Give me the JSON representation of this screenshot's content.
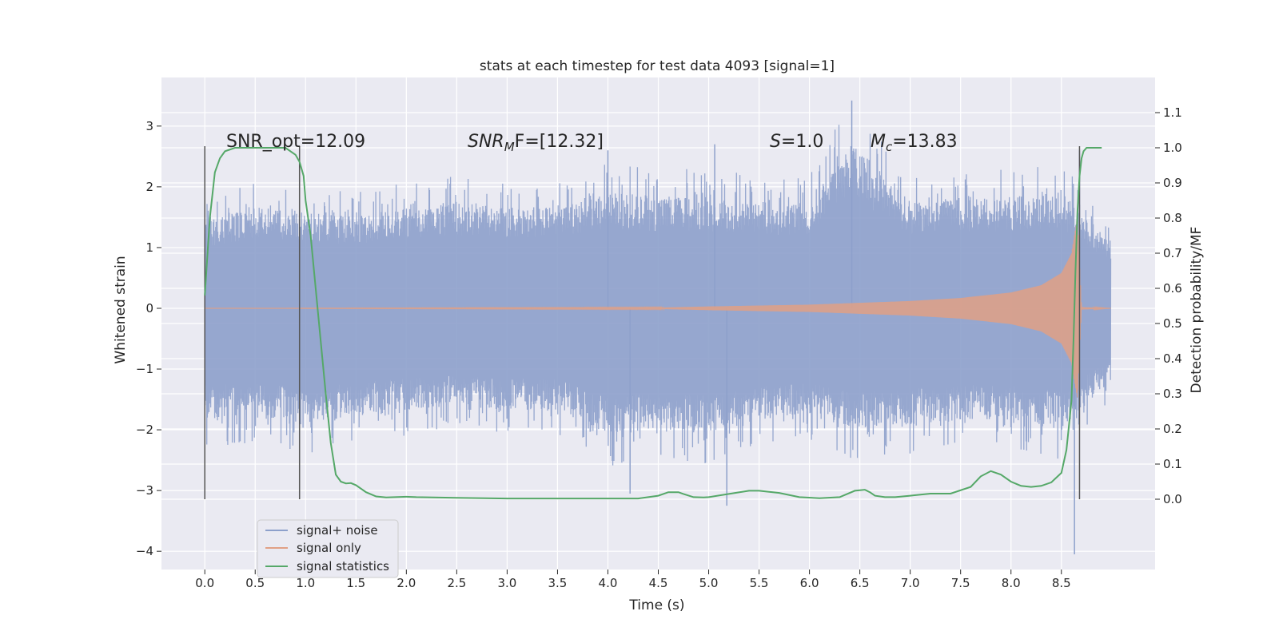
{
  "chart_data": {
    "type": "line",
    "title": "stats at each timestep for test data 4093 [signal=1]",
    "xlabel": "Time (s)",
    "ylabel": "Whitened strain",
    "ylabel_right": "Detection probability/MF",
    "xlim": [
      -0.43,
      9.43
    ],
    "ylim": [
      -4.3,
      3.8
    ],
    "ylim_right": [
      -0.2,
      1.2
    ],
    "x_ticks": [
      "0.0",
      "0.5",
      "1.0",
      "1.5",
      "2.0",
      "2.5",
      "3.0",
      "3.5",
      "4.0",
      "4.5",
      "5.0",
      "5.5",
      "6.0",
      "6.5",
      "7.0",
      "7.5",
      "8.0",
      "8.5"
    ],
    "y_ticks": [
      "3",
      "2",
      "1",
      "0",
      "−1",
      "−2",
      "−3",
      "−4"
    ],
    "y_ticks_right": [
      "0.0",
      "0.1",
      "0.2",
      "0.3",
      "0.4",
      "0.5",
      "0.6",
      "0.7",
      "0.8",
      "0.9",
      "1.0",
      "1.1"
    ],
    "grid": true,
    "legend_position": "lower-left",
    "annotations": {
      "snr_opt": "SNR_opt=12.09",
      "snr_mf_base": "SNR",
      "snr_mf_sub": "M",
      "snr_mf_rest": "F=[12.32]",
      "s_base": "S",
      "s_rest": "=1.0",
      "mc_base": "M",
      "mc_sub": "c",
      "mc_rest": "=13.83"
    },
    "vertical_markers": [
      0.0,
      0.94,
      8.68
    ],
    "series": [
      {
        "name": "signal+ noise",
        "color": "#8da0cb",
        "x_range": [
          0.0,
          8.99
        ],
        "envelope": [
          [
            0.0,
            1.8,
            -2.3
          ],
          [
            0.5,
            2.1,
            -2.2
          ],
          [
            1.0,
            2.0,
            -2.4
          ],
          [
            1.5,
            1.9,
            -2.2
          ],
          [
            2.0,
            2.1,
            -2.1
          ],
          [
            2.5,
            2.2,
            -2.0
          ],
          [
            3.0,
            2.1,
            -2.1
          ],
          [
            3.5,
            2.1,
            -2.1
          ],
          [
            4.0,
            2.4,
            -2.6
          ],
          [
            4.5,
            2.3,
            -2.5
          ],
          [
            5.0,
            2.3,
            -2.6
          ],
          [
            5.5,
            2.2,
            -2.3
          ],
          [
            6.0,
            2.2,
            -2.2
          ],
          [
            6.4,
            3.4,
            -2.5
          ],
          [
            7.0,
            2.2,
            -2.4
          ],
          [
            7.5,
            2.3,
            -2.3
          ],
          [
            8.0,
            2.3,
            -2.3
          ],
          [
            8.5,
            2.4,
            -2.5
          ],
          [
            8.99,
            1.4,
            -1.5
          ]
        ],
        "spikes": [
          [
            6.42,
            3.42
          ],
          [
            8.63,
            -4.05
          ],
          [
            5.18,
            -3.25
          ],
          [
            4.22,
            -3.05
          ],
          [
            8.68,
            2.6
          ],
          [
            4.0,
            2.6
          ],
          [
            5.06,
            2.7
          ]
        ]
      },
      {
        "name": "signal only",
        "color": "#e1a085",
        "envelope": [
          [
            0.0,
            0.0
          ],
          [
            4.5,
            0.01
          ],
          [
            5.0,
            0.03
          ],
          [
            6.0,
            0.06
          ],
          [
            7.0,
            0.12
          ],
          [
            7.5,
            0.17
          ],
          [
            8.0,
            0.26
          ],
          [
            8.3,
            0.38
          ],
          [
            8.5,
            0.58
          ],
          [
            8.6,
            0.9
          ],
          [
            8.66,
            1.5
          ],
          [
            8.7,
            0.02
          ],
          [
            8.99,
            0.0
          ]
        ]
      },
      {
        "name": "signal statistics",
        "color": "#55a868",
        "x": [
          0.0,
          0.05,
          0.1,
          0.15,
          0.2,
          0.3,
          0.5,
          0.8,
          0.9,
          0.94,
          0.98,
          1.0,
          1.05,
          1.1,
          1.15,
          1.2,
          1.25,
          1.3,
          1.35,
          1.4,
          1.45,
          1.5,
          1.6,
          1.7,
          1.8,
          2.0,
          2.1,
          2.5,
          3.0,
          3.5,
          4.0,
          4.3,
          4.5,
          4.6,
          4.7,
          4.75,
          4.85,
          4.95,
          5.0,
          5.2,
          5.4,
          5.5,
          5.7,
          5.9,
          6.1,
          6.3,
          6.45,
          6.55,
          6.6,
          6.65,
          6.75,
          6.85,
          7.0,
          7.2,
          7.4,
          7.6,
          7.7,
          7.8,
          7.9,
          8.0,
          8.1,
          8.2,
          8.3,
          8.4,
          8.5,
          8.55,
          8.6,
          8.62,
          8.64,
          8.66,
          8.68,
          8.7,
          8.72,
          8.75,
          8.8,
          8.85,
          8.9
        ],
        "y": [
          0.58,
          0.8,
          0.93,
          0.97,
          0.99,
          1.0,
          1.0,
          1.0,
          0.98,
          0.96,
          0.92,
          0.85,
          0.75,
          0.6,
          0.45,
          0.3,
          0.16,
          0.07,
          0.05,
          0.045,
          0.046,
          0.04,
          0.02,
          0.008,
          0.005,
          0.007,
          0.006,
          0.004,
          0.002,
          0.002,
          0.002,
          0.002,
          0.01,
          0.02,
          0.02,
          0.015,
          0.006,
          0.005,
          0.006,
          0.015,
          0.024,
          0.024,
          0.018,
          0.006,
          0.003,
          0.006,
          0.024,
          0.027,
          0.02,
          0.01,
          0.006,
          0.006,
          0.01,
          0.016,
          0.016,
          0.035,
          0.065,
          0.08,
          0.07,
          0.05,
          0.038,
          0.035,
          0.038,
          0.048,
          0.075,
          0.14,
          0.28,
          0.45,
          0.65,
          0.82,
          0.92,
          0.97,
          0.99,
          1.0,
          1.0,
          1.0,
          1.0
        ]
      }
    ]
  }
}
